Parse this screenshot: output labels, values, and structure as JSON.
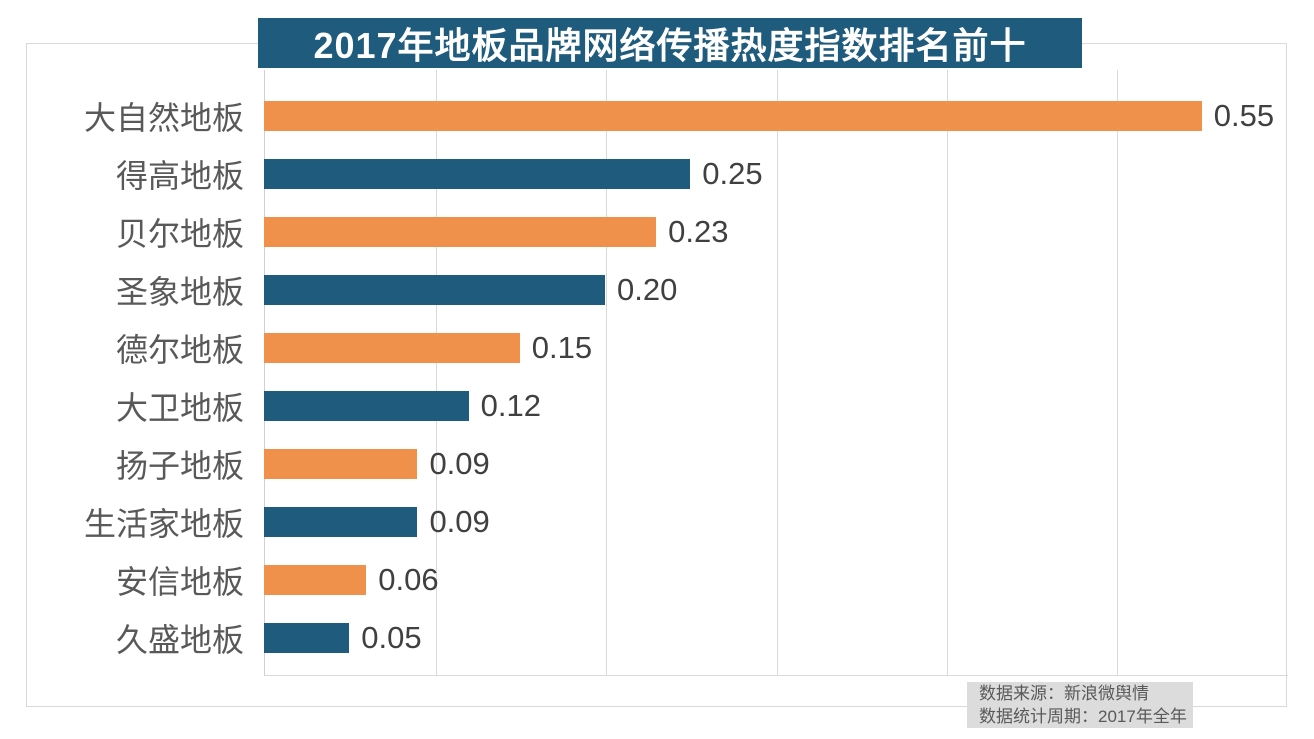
{
  "title": {
    "text": "2017年地板品牌网络传播热度指数排名前十",
    "bg_color": "#1f5b7c",
    "text_color": "#ffffff"
  },
  "chart_data": {
    "type": "bar",
    "orientation": "horizontal",
    "title": "2017年地板品牌网络传播热度指数排名前十",
    "categories": [
      "大自然地板",
      "得高地板",
      "贝尔地板",
      "圣象地板",
      "德尔地板",
      "大卫地板",
      "扬子地板",
      "生活家地板",
      "安信地板",
      "久盛地板"
    ],
    "values": [
      0.55,
      0.25,
      0.23,
      0.2,
      0.15,
      0.12,
      0.09,
      0.09,
      0.06,
      0.05
    ],
    "value_labels": [
      "0.55",
      "0.25",
      "0.23",
      "0.20",
      "0.15",
      "0.12",
      "0.09",
      "0.09",
      "0.06",
      "0.05"
    ],
    "xlabel": "",
    "ylabel": "",
    "xlim": [
      0,
      0.6
    ],
    "gridline_interval": 0.1,
    "grid": true,
    "legend": false,
    "bar_colors_alternating": [
      "#ef914b",
      "#1f5b7c"
    ]
  },
  "footer": {
    "source_line": "数据来源：新浪微舆情",
    "period_line": "数据统计周期：2017年全年",
    "bg_color": "#dcdcdc"
  },
  "colors": {
    "orange_bar": "#ef914b",
    "blue_bar": "#1f5b7c",
    "grid": "#d9d9d9",
    "category_label": "#595959",
    "value_label": "#404040"
  }
}
